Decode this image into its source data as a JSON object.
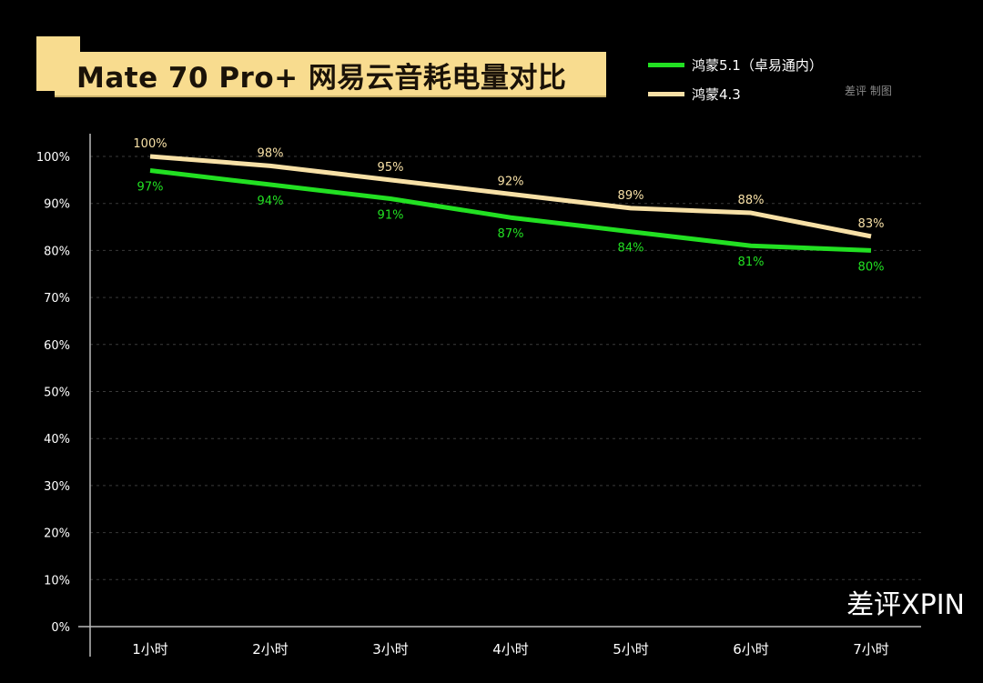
{
  "chart_data": {
    "type": "line",
    "title": "Mate 70 Pro+ 网易云音耗电量对比",
    "categories": [
      "1小时",
      "2小时",
      "3小时",
      "4小时",
      "5小时",
      "6小时",
      "7小时"
    ],
    "series": [
      {
        "name": "鸿蒙5.1（卓易通内）",
        "color": "#22e022",
        "values": [
          97,
          94,
          91,
          87,
          84,
          81,
          80
        ],
        "labels": [
          "97%",
          "94%",
          "91%",
          "87%",
          "84%",
          "81%",
          "80%"
        ]
      },
      {
        "name": "鸿蒙4.3",
        "color": "#f7e0a6",
        "values": [
          100,
          98,
          95,
          92,
          89,
          88,
          83
        ],
        "labels": [
          "100%",
          "98%",
          "95%",
          "92%",
          "89%",
          "88%",
          "83%"
        ]
      }
    ],
    "yticks": [
      "0%",
      "10%",
      "20%",
      "30%",
      "40%",
      "50%",
      "60%",
      "70%",
      "80%",
      "90%",
      "100%"
    ],
    "ylim": [
      0,
      100
    ],
    "grid": true,
    "legend_position": "top-right"
  },
  "credit": "差评 制图",
  "watermark": "差评XPIN",
  "colors": {
    "title_bg": "#f8dc8f",
    "background": "#000000"
  }
}
